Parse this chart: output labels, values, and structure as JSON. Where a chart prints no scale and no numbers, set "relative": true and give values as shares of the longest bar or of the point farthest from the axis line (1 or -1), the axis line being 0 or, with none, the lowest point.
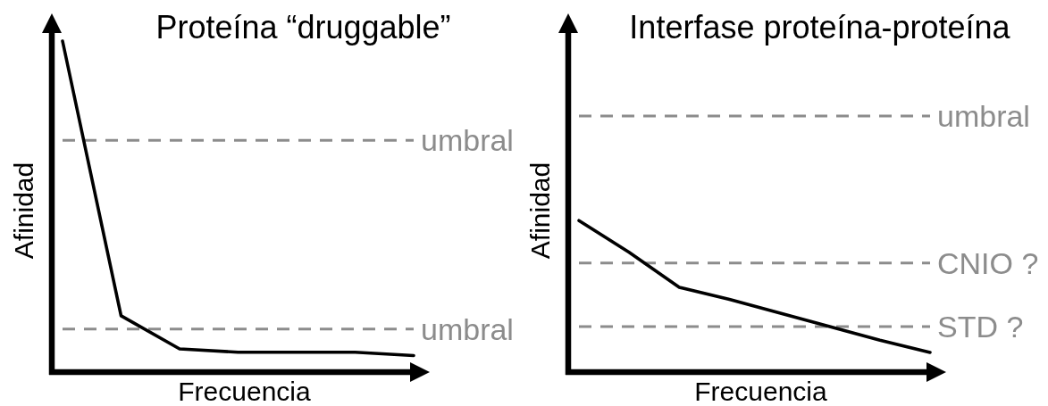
{
  "chart_data": [
    {
      "type": "line",
      "title": "Proteína “druggable”",
      "xlabel": "Frecuencia",
      "ylabel": "Afinidad",
      "relative": true,
      "categories": [
        null,
        null,
        null,
        null,
        null,
        null,
        null
      ],
      "values": [
        1,
        0.17,
        0.07,
        0.06,
        0.06,
        0.06,
        0.05
      ],
      "color": "#000000",
      "ref_lines": [
        {
          "axis": "y",
          "value": 0.7,
          "label": "umbral",
          "color": "#8c8c8c",
          "line_style": "dashed"
        },
        {
          "axis": "y",
          "value": 0.13,
          "label": "umbral",
          "color": "#8c8c8c",
          "line_style": "dashed"
        }
      ]
    },
    {
      "type": "line",
      "title": "Interfase proteína-proteína",
      "xlabel": "Frecuencia",
      "ylabel": "Afinidad",
      "relative": true,
      "categories": [
        null,
        null,
        null,
        null,
        null,
        null,
        null,
        null
      ],
      "values": [
        1,
        0.79,
        0.56,
        0.48,
        0.39,
        0.3,
        0.21,
        0.13
      ],
      "color": "#000000",
      "ref_lines": [
        {
          "axis": "y",
          "value": 1.69,
          "label": "umbral",
          "color": "#8c8c8c",
          "line_style": "dashed"
        },
        {
          "axis": "y",
          "value": 0.72,
          "label": "CNIO ?",
          "color": "#8c8c8c",
          "line_style": "dashed"
        },
        {
          "axis": "y",
          "value": 0.3,
          "label": "STD ?",
          "color": "#8c8c8c",
          "line_style": "dashed"
        }
      ]
    }
  ]
}
